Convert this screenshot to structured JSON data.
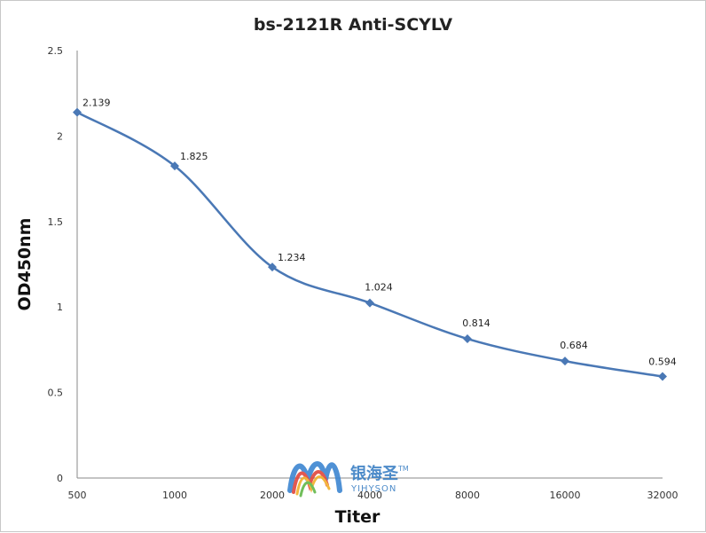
{
  "chart_data": {
    "type": "line",
    "title": "bs-2121R Anti-SCYLV",
    "xlabel": "Titer",
    "ylabel": "OD450nm",
    "categories": [
      "500",
      "1000",
      "2000",
      "4000",
      "8000",
      "16000",
      "32000"
    ],
    "series": [
      {
        "values": [
          2.139,
          1.825,
          1.234,
          1.024,
          0.814,
          0.684,
          0.594
        ]
      }
    ],
    "data_labels": [
      "2.139",
      "1.825",
      "1.234",
      "1.024",
      "0.814",
      "0.684",
      "0.594"
    ],
    "ylim": [
      0,
      2.5
    ],
    "yticks": [
      "0",
      "0.5",
      "1",
      "1.5",
      "2",
      "2.5"
    ],
    "ytick_values": [
      0,
      0.5,
      1,
      1.5,
      2,
      2.5
    ],
    "grid": false,
    "legend": "none",
    "line_color": "#4a78b5"
  },
  "watermark": {
    "chinese": "银海圣",
    "english": "YIHYSON",
    "tm": "TM"
  }
}
